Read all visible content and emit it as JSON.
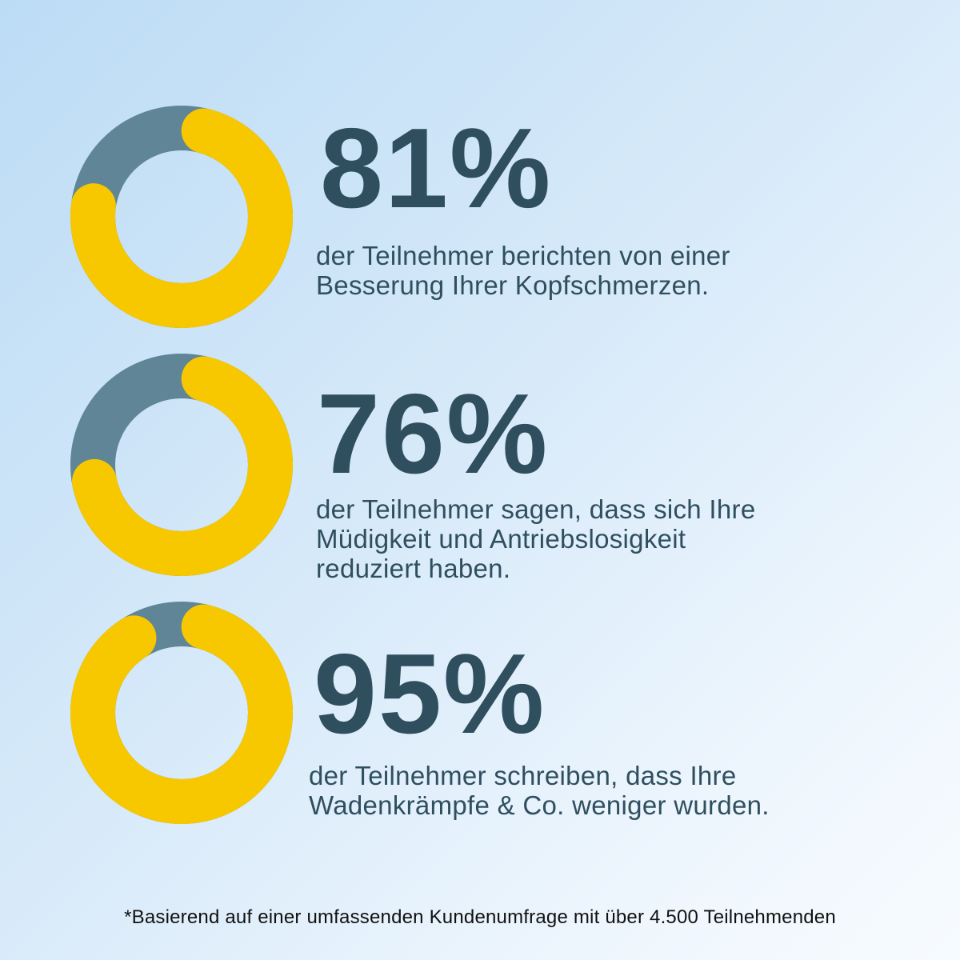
{
  "colors": {
    "filled": "#f7c800",
    "remaining": "#5f8597",
    "text": "#2f4f5f"
  },
  "chart_data": [
    {
      "type": "pie",
      "style": "donut",
      "values": [
        81,
        19
      ],
      "labels": [
        "filled",
        "remaining"
      ],
      "percent_label": "81%",
      "description_lines": [
        "der Teilnehmer berichten von einer",
        "Besserung Ihrer Kopfschmerzen."
      ]
    },
    {
      "type": "pie",
      "style": "donut",
      "values": [
        76,
        24
      ],
      "labels": [
        "filled",
        "remaining"
      ],
      "percent_label": "76%",
      "description_lines": [
        "der Teilnehmer sagen, dass sich Ihre",
        "Müdigkeit und Antriebslosigkeit",
        "reduziert haben."
      ]
    },
    {
      "type": "pie",
      "style": "donut",
      "values": [
        95,
        5
      ],
      "labels": [
        "filled",
        "remaining"
      ],
      "percent_label": "95%",
      "description_lines": [
        "der Teilnehmer schreiben, dass Ihre",
        "Wadenkrämpfe & Co. weniger wurden."
      ]
    }
  ],
  "footnote": "*Basierend auf einer umfassenden Kundenumfrage mit über 4.500 Teilnehmenden"
}
